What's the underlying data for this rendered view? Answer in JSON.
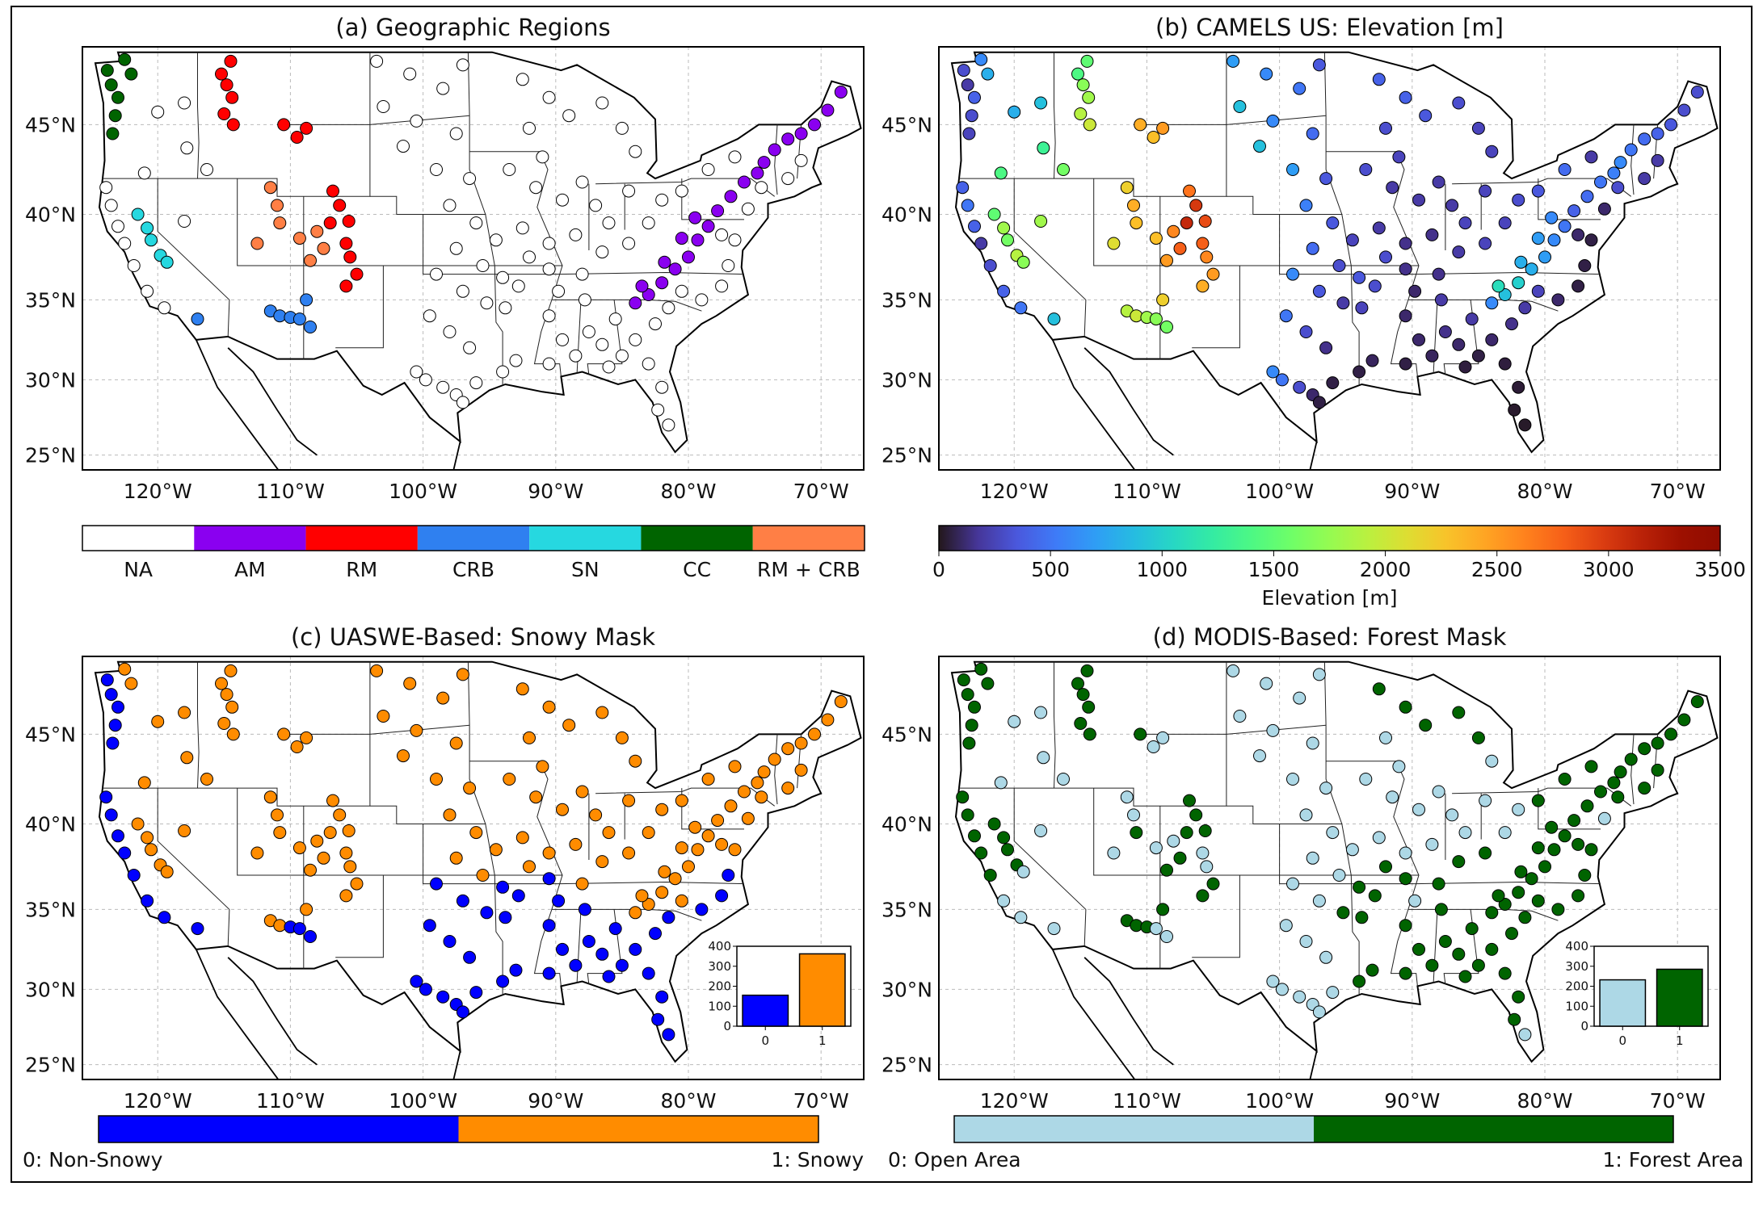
{
  "figure": {
    "panels": [
      {
        "id": "a",
        "title": "(a) Geographic Regions",
        "color_by": "region"
      },
      {
        "id": "b",
        "title": "(b) CAMELS US: Elevation [m]",
        "color_by": "elevation"
      },
      {
        "id": "c",
        "title": "(c) UASWE-Based: Snowy Mask",
        "color_by": "snowy"
      },
      {
        "id": "d",
        "title": "(d) MODIS-Based: Forest Mask",
        "color_by": "forest"
      }
    ],
    "map": {
      "lon_ticks": [
        {
          "value": -120,
          "label": "120°W"
        },
        {
          "value": -110,
          "label": "110°W"
        },
        {
          "value": -100,
          "label": "100°W"
        },
        {
          "value": -90,
          "label": "90°W"
        },
        {
          "value": -80,
          "label": "80°W"
        },
        {
          "value": -70,
          "label": "70°W"
        }
      ],
      "lat_ticks": [
        {
          "value": 45,
          "label": "45°N"
        },
        {
          "value": 40,
          "label": "40°N"
        },
        {
          "value": 35,
          "label": "35°N"
        },
        {
          "value": 30,
          "label": "30°N"
        },
        {
          "value": 25,
          "label": "25°N"
        }
      ],
      "gridlines": "dashed",
      "marker_edge": "#000000"
    },
    "colorbars": {
      "region": {
        "categories": [
          {
            "label": "NA",
            "color": "#ffffff"
          },
          {
            "label": "AM",
            "color": "#8a00f0"
          },
          {
            "label": "RM",
            "color": "#ff0000"
          },
          {
            "label": "CRB",
            "color": "#2f80f0"
          },
          {
            "label": "SN",
            "color": "#26d8e0"
          },
          {
            "label": "CC",
            "color": "#006400"
          },
          {
            "label": "RM + CRB",
            "color": "#ff7f45"
          }
        ]
      },
      "elevation": {
        "colormap": "turbo",
        "range": [
          0,
          3500
        ],
        "ticks": [
          "0",
          "500",
          "1000",
          "1500",
          "2000",
          "2500",
          "3000",
          "3500"
        ],
        "label": "Elevation [m]"
      },
      "snowy": {
        "categories": [
          {
            "label": "0: Non-Snowy",
            "color": "#0000ff"
          },
          {
            "label": "1: Snowy",
            "color": "#ff8c00"
          }
        ]
      },
      "forest": {
        "categories": [
          {
            "label": "0: Open Area",
            "color": "#add8e6"
          },
          {
            "label": "1: Forest Area",
            "color": "#006400"
          }
        ]
      }
    },
    "insets": {
      "snowy": {
        "type": "bar",
        "categories": [
          "0",
          "1"
        ],
        "values": [
          155,
          362
        ],
        "yticks": [
          "0",
          "100",
          "200",
          "300",
          "400"
        ],
        "ylim": [
          0,
          400
        ]
      },
      "forest": {
        "type": "bar",
        "categories": [
          "0",
          "1"
        ],
        "values": [
          232,
          285
        ],
        "yticks": [
          "0",
          "100",
          "200",
          "300",
          "400"
        ],
        "ylim": [
          0,
          400
        ]
      }
    }
  },
  "chart_data": {
    "type": "scatter",
    "fields": [
      "lon",
      "lat",
      "region",
      "elevation_m",
      "snowy",
      "forest"
    ],
    "stations": [
      [
        -123.8,
        48.0,
        "CC",
        300,
        0,
        1
      ],
      [
        -123.5,
        47.2,
        "CC",
        200,
        0,
        1
      ],
      [
        -123.0,
        46.5,
        "CC",
        400,
        0,
        1
      ],
      [
        -123.2,
        45.5,
        "CC",
        300,
        0,
        1
      ],
      [
        -123.4,
        44.5,
        "CC",
        250,
        0,
        1
      ],
      [
        -122.5,
        48.6,
        "CC",
        600,
        1,
        1
      ],
      [
        -122.0,
        47.8,
        "CC",
        800,
        1,
        1
      ],
      [
        -121.5,
        40.0,
        "SN",
        1500,
        1,
        1
      ],
      [
        -120.8,
        39.2,
        "SN",
        1800,
        1,
        1
      ],
      [
        -120.5,
        38.5,
        "SN",
        1600,
        1,
        1
      ],
      [
        -119.8,
        37.6,
        "SN",
        1900,
        1,
        1
      ],
      [
        -119.3,
        37.2,
        "SN",
        1700,
        1,
        0
      ],
      [
        -114.5,
        48.5,
        "RM",
        1500,
        1,
        1
      ],
      [
        -115.2,
        47.8,
        "RM",
        1400,
        1,
        1
      ],
      [
        -114.8,
        47.2,
        "RM",
        1700,
        1,
        1
      ],
      [
        -114.4,
        46.5,
        "RM",
        1800,
        1,
        1
      ],
      [
        -115.0,
        45.6,
        "RM",
        1900,
        1,
        1
      ],
      [
        -114.3,
        45.0,
        "RM",
        2000,
        1,
        1
      ],
      [
        -110.5,
        45.0,
        "RM",
        2400,
        1,
        1
      ],
      [
        -109.5,
        44.3,
        "RM",
        2300,
        1,
        0
      ],
      [
        -108.8,
        44.8,
        "RM",
        2500,
        1,
        0
      ],
      [
        -106.8,
        41.3,
        "RM",
        2700,
        1,
        1
      ],
      [
        -106.3,
        40.5,
        "RM",
        3000,
        1,
        1
      ],
      [
        -107.0,
        39.5,
        "RM",
        3100,
        1,
        1
      ],
      [
        -105.6,
        39.6,
        "RM",
        2900,
        1,
        1
      ],
      [
        -105.8,
        38.3,
        "RM",
        2800,
        1,
        0
      ],
      [
        -105.5,
        37.5,
        "RM",
        2600,
        1,
        0
      ],
      [
        -105.0,
        36.5,
        "RM",
        2500,
        1,
        1
      ],
      [
        -105.8,
        35.8,
        "RM",
        2400,
        1,
        1
      ],
      [
        -111.5,
        41.5,
        "RM + CRB",
        2200,
        1,
        0
      ],
      [
        -111.0,
        40.5,
        "RM + CRB",
        2400,
        1,
        0
      ],
      [
        -110.8,
        39.5,
        "RM + CRB",
        2300,
        1,
        1
      ],
      [
        -112.5,
        38.3,
        "RM + CRB",
        2100,
        1,
        0
      ],
      [
        -108.0,
        39.0,
        "RM + CRB",
        2600,
        1,
        0
      ],
      [
        -107.5,
        38.0,
        "RM + CRB",
        2800,
        1,
        1
      ],
      [
        -108.5,
        37.3,
        "RM + CRB",
        2500,
        1,
        1
      ],
      [
        -109.3,
        38.6,
        "RM + CRB",
        2300,
        1,
        0
      ],
      [
        -111.5,
        34.3,
        "CRB",
        1900,
        1,
        1
      ],
      [
        -110.8,
        34.0,
        "CRB",
        2000,
        1,
        1
      ],
      [
        -110.0,
        33.9,
        "CRB",
        1800,
        0,
        1
      ],
      [
        -109.3,
        33.8,
        "CRB",
        1700,
        0,
        0
      ],
      [
        -108.8,
        35.0,
        "CRB",
        2200,
        1,
        1
      ],
      [
        -108.5,
        33.3,
        "CRB",
        1600,
        0,
        0
      ],
      [
        -117.0,
        33.8,
        "CRB",
        900,
        0,
        0
      ],
      [
        -84.0,
        34.8,
        "AM",
        600,
        1,
        1
      ],
      [
        -83.0,
        35.3,
        "AM",
        900,
        1,
        1
      ],
      [
        -82.0,
        36.0,
        "AM",
        1000,
        1,
        1
      ],
      [
        -81.0,
        36.8,
        "AM",
        800,
        1,
        1
      ],
      [
        -80.0,
        37.5,
        "AM",
        700,
        1,
        1
      ],
      [
        -79.3,
        38.5,
        "AM",
        600,
        1,
        1
      ],
      [
        -78.5,
        39.3,
        "AM",
        500,
        1,
        1
      ],
      [
        -77.8,
        40.2,
        "AM",
        400,
        1,
        1
      ],
      [
        -76.8,
        41.0,
        "AM",
        450,
        1,
        1
      ],
      [
        -75.8,
        41.8,
        "AM",
        500,
        1,
        1
      ],
      [
        -74.8,
        42.3,
        "AM",
        550,
        1,
        1
      ],
      [
        -74.3,
        42.9,
        "AM",
        600,
        1,
        1
      ],
      [
        -73.5,
        43.6,
        "AM",
        500,
        1,
        1
      ],
      [
        -72.5,
        44.2,
        "AM",
        450,
        1,
        1
      ],
      [
        -71.5,
        44.5,
        "AM",
        400,
        1,
        1
      ],
      [
        -70.5,
        45.0,
        "AM",
        350,
        1,
        1
      ],
      [
        -69.5,
        45.8,
        "AM",
        300,
        1,
        1
      ],
      [
        -68.5,
        46.8,
        "AM",
        300,
        1,
        1
      ],
      [
        -79.5,
        39.8,
        "AM",
        600,
        1,
        1
      ],
      [
        -80.5,
        38.6,
        "AM",
        700,
        1,
        1
      ],
      [
        -81.8,
        37.2,
        "AM",
        800,
        1,
        1
      ],
      [
        -83.5,
        35.8,
        "AM",
        1100,
        1,
        1
      ],
      [
        -123.9,
        41.5,
        "NA",
        400,
        0,
        1
      ],
      [
        -123.5,
        40.5,
        "NA",
        500,
        0,
        1
      ],
      [
        -123.0,
        39.3,
        "NA",
        400,
        0,
        1
      ],
      [
        -122.5,
        38.3,
        "NA",
        200,
        0,
        1
      ],
      [
        -121.8,
        37.0,
        "NA",
        300,
        0,
        1
      ],
      [
        -120.8,
        35.5,
        "NA",
        400,
        0,
        0
      ],
      [
        -119.5,
        34.5,
        "NA",
        500,
        0,
        0
      ],
      [
        -121.0,
        42.3,
        "NA",
        1400,
        1,
        0
      ],
      [
        -118.0,
        39.6,
        "NA",
        1800,
        1,
        0
      ],
      [
        -117.8,
        43.7,
        "NA",
        1300,
        1,
        0
      ],
      [
        -116.3,
        42.5,
        "NA",
        1600,
        1,
        0
      ],
      [
        -120.0,
        45.7,
        "NA",
        800,
        1,
        0
      ],
      [
        -118.0,
        46.2,
        "NA",
        900,
        1,
        0
      ],
      [
        -103.5,
        48.5,
        "NA",
        700,
        1,
        0
      ],
      [
        -101.0,
        47.8,
        "NA",
        600,
        1,
        0
      ],
      [
        -98.5,
        47.0,
        "NA",
        500,
        1,
        0
      ],
      [
        -97.0,
        48.3,
        "NA",
        350,
        1,
        0
      ],
      [
        -103.0,
        46.0,
        "NA",
        900,
        1,
        0
      ],
      [
        -100.5,
        45.2,
        "NA",
        600,
        1,
        0
      ],
      [
        -97.5,
        44.5,
        "NA",
        450,
        1,
        0
      ],
      [
        -101.5,
        43.8,
        "NA",
        900,
        1,
        0
      ],
      [
        -99.0,
        42.5,
        "NA",
        700,
        1,
        0
      ],
      [
        -96.5,
        42.0,
        "NA",
        350,
        1,
        0
      ],
      [
        -98.0,
        40.5,
        "NA",
        550,
        1,
        0
      ],
      [
        -96.0,
        39.5,
        "NA",
        350,
        1,
        0
      ],
      [
        -97.5,
        38.0,
        "NA",
        450,
        1,
        0
      ],
      [
        -95.5,
        37.0,
        "NA",
        300,
        1,
        0
      ],
      [
        -94.5,
        38.5,
        "NA",
        250,
        1,
        0
      ],
      [
        -99.0,
        36.5,
        "NA",
        600,
        0,
        0
      ],
      [
        -97.0,
        35.5,
        "NA",
        350,
        0,
        0
      ],
      [
        -95.2,
        34.8,
        "NA",
        200,
        0,
        1
      ],
      [
        -99.5,
        34.0,
        "NA",
        500,
        0,
        0
      ],
      [
        -98.0,
        33.0,
        "NA",
        300,
        0,
        0
      ],
      [
        -96.5,
        32.0,
        "NA",
        150,
        0,
        0
      ],
      [
        -99.8,
        30.0,
        "NA",
        500,
        0,
        0
      ],
      [
        -98.5,
        29.5,
        "NA",
        300,
        0,
        0
      ],
      [
        -97.5,
        29.0,
        "NA",
        100,
        0,
        0
      ],
      [
        -96.0,
        29.8,
        "NA",
        50,
        0,
        0
      ],
      [
        -97.0,
        28.5,
        "NA",
        50,
        0,
        0
      ],
      [
        -100.5,
        30.5,
        "NA",
        600,
        0,
        0
      ],
      [
        -94.0,
        30.5,
        "NA",
        50,
        0,
        1
      ],
      [
        -93.0,
        31.2,
        "NA",
        80,
        0,
        1
      ],
      [
        -92.5,
        47.5,
        "NA",
        400,
        1,
        1
      ],
      [
        -90.5,
        46.5,
        "NA",
        400,
        1,
        1
      ],
      [
        -89.0,
        45.5,
        "NA",
        350,
        1,
        1
      ],
      [
        -86.5,
        46.2,
        "NA",
        300,
        1,
        1
      ],
      [
        -85.0,
        44.8,
        "NA",
        250,
        1,
        1
      ],
      [
        -84.0,
        43.5,
        "NA",
        250,
        1,
        0
      ],
      [
        -92.0,
        44.8,
        "NA",
        300,
        1,
        0
      ],
      [
        -91.0,
        43.2,
        "NA",
        250,
        1,
        0
      ],
      [
        -93.5,
        42.5,
        "NA",
        300,
        1,
        0
      ],
      [
        -91.5,
        41.5,
        "NA",
        200,
        1,
        0
      ],
      [
        -89.5,
        40.8,
        "NA",
        200,
        1,
        0
      ],
      [
        -88.0,
        41.8,
        "NA",
        200,
        1,
        0
      ],
      [
        -87.0,
        40.5,
        "NA",
        200,
        1,
        0
      ],
      [
        -86.0,
        39.5,
        "NA",
        250,
        1,
        0
      ],
      [
        -88.5,
        38.8,
        "NA",
        150,
        1,
        0
      ],
      [
        -90.5,
        38.3,
        "NA",
        150,
        1,
        0
      ],
      [
        -92.5,
        39.2,
        "NA",
        200,
        1,
        0
      ],
      [
        -92.0,
        37.5,
        "NA",
        300,
        1,
        1
      ],
      [
        -90.5,
        36.8,
        "NA",
        150,
        0,
        1
      ],
      [
        -92.8,
        35.8,
        "NA",
        300,
        0,
        1
      ],
      [
        -94.0,
        36.3,
        "NA",
        350,
        0,
        1
      ],
      [
        -93.8,
        34.5,
        "NA",
        250,
        0,
        1
      ],
      [
        -89.8,
        35.5,
        "NA",
        100,
        0,
        0
      ],
      [
        -88.0,
        36.5,
        "NA",
        150,
        1,
        1
      ],
      [
        -86.5,
        37.8,
        "NA",
        200,
        1,
        1
      ],
      [
        -84.5,
        38.3,
        "NA",
        250,
        1,
        1
      ],
      [
        -83.0,
        39.5,
        "NA",
        250,
        1,
        0
      ],
      [
        -82.0,
        40.8,
        "NA",
        300,
        1,
        0
      ],
      [
        -84.5,
        41.3,
        "NA",
        250,
        1,
        0
      ],
      [
        -80.5,
        41.3,
        "NA",
        350,
        1,
        1
      ],
      [
        -78.5,
        42.5,
        "NA",
        450,
        1,
        1
      ],
      [
        -76.5,
        43.2,
        "NA",
        200,
        1,
        1
      ],
      [
        -90.5,
        34.0,
        "NA",
        100,
        0,
        1
      ],
      [
        -89.5,
        32.5,
        "NA",
        100,
        0,
        1
      ],
      [
        -90.5,
        31.0,
        "NA",
        50,
        0,
        1
      ],
      [
        -88.5,
        31.5,
        "NA",
        80,
        0,
        1
      ],
      [
        -87.5,
        33.0,
        "NA",
        150,
        0,
        1
      ],
      [
        -86.5,
        32.2,
        "NA",
        100,
        0,
        1
      ],
      [
        -85.5,
        33.8,
        "NA",
        200,
        0,
        1
      ],
      [
        -85.0,
        31.5,
        "NA",
        50,
        0,
        1
      ],
      [
        -84.0,
        32.5,
        "NA",
        100,
        0,
        1
      ],
      [
        -83.0,
        31.0,
        "NA",
        40,
        0,
        1
      ],
      [
        -82.5,
        33.5,
        "NA",
        150,
        0,
        1
      ],
      [
        -81.5,
        34.5,
        "NA",
        200,
        0,
        1
      ],
      [
        -80.5,
        35.5,
        "NA",
        250,
        1,
        1
      ],
      [
        -79.0,
        35.0,
        "NA",
        100,
        0,
        1
      ],
      [
        -77.5,
        35.8,
        "NA",
        50,
        0,
        1
      ],
      [
        -77.0,
        37.0,
        "NA",
        50,
        0,
        1
      ],
      [
        -76.5,
        38.5,
        "NA",
        50,
        1,
        1
      ],
      [
        -82.0,
        29.5,
        "NA",
        30,
        0,
        1
      ],
      [
        -82.3,
        28.0,
        "NA",
        20,
        0,
        1
      ],
      [
        -81.5,
        27.0,
        "NA",
        15,
        0,
        0
      ],
      [
        -86.0,
        30.8,
        "NA",
        40,
        0,
        1
      ],
      [
        -87.8,
        35.0,
        "NA",
        200,
        0,
        1
      ],
      [
        -77.5,
        38.8,
        "NA",
        100,
        1,
        1
      ],
      [
        -75.5,
        40.3,
        "NA",
        100,
        1,
        0
      ],
      [
        -74.5,
        41.5,
        "NA",
        300,
        1,
        1
      ],
      [
        -72.5,
        42.0,
        "NA",
        200,
        1,
        1
      ],
      [
        -71.5,
        43.0,
        "NA",
        200,
        1,
        1
      ]
    ]
  }
}
